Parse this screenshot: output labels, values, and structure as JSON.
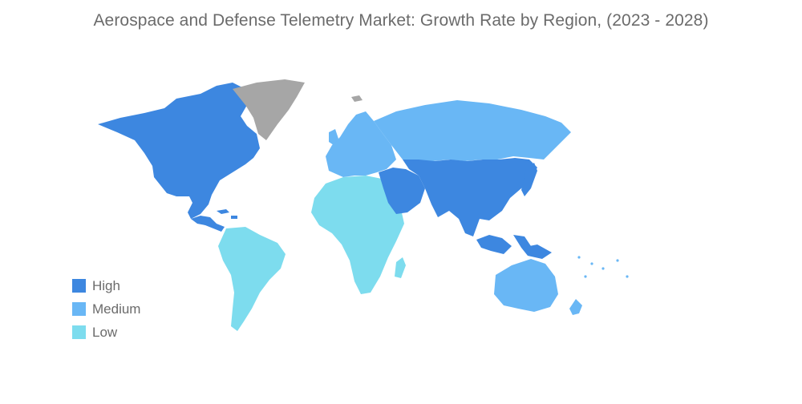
{
  "title": "Aerospace and Defense Telemetry Market: Growth Rate by Region, (2023 - 2028)",
  "colors": {
    "high": "#3d87e0",
    "medium": "#69b7f5",
    "low": "#7ddcee",
    "no_data": "#a6a6a6"
  },
  "legend": [
    {
      "label": "High",
      "level": "high"
    },
    {
      "label": "Medium",
      "level": "medium"
    },
    {
      "label": "Low",
      "level": "low"
    }
  ],
  "regions": [
    {
      "name": "North America",
      "level": "high"
    },
    {
      "name": "Greenland",
      "level": "no_data"
    },
    {
      "name": "South America",
      "level": "low"
    },
    {
      "name": "Europe",
      "level": "medium"
    },
    {
      "name": "Russia",
      "level": "medium"
    },
    {
      "name": "Africa",
      "level": "low"
    },
    {
      "name": "Middle East",
      "level": "high"
    },
    {
      "name": "Asia",
      "level": "high"
    },
    {
      "name": "Japan",
      "level": "high"
    },
    {
      "name": "Southeast Asia",
      "level": "high"
    },
    {
      "name": "Australia",
      "level": "medium"
    },
    {
      "name": "New Zealand",
      "level": "medium"
    }
  ]
}
